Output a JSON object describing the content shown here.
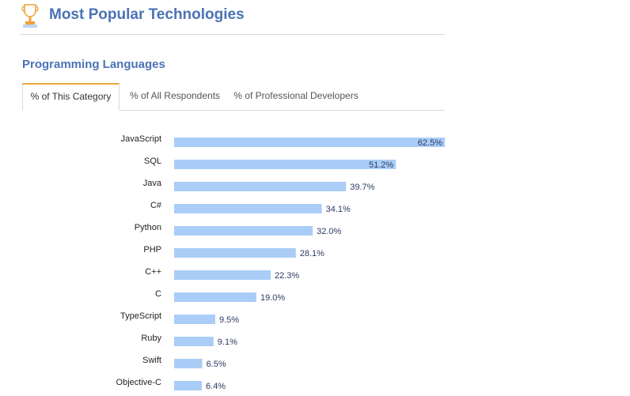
{
  "header": {
    "title": "Most Popular Technologies",
    "icon": "trophy-icon"
  },
  "section": {
    "title": "Programming Languages"
  },
  "tabs": [
    {
      "label": "% of This Category",
      "active": true
    },
    {
      "label": "% of All Respondents",
      "active": false
    },
    {
      "label": "% of Professional Developers",
      "active": false
    }
  ],
  "colors": {
    "bar": "#a9cdf7",
    "title": "#4a73b5",
    "tab_accent": "#f0a33b",
    "value_label": "#2d3a63"
  },
  "chart_data": {
    "type": "bar",
    "orientation": "horizontal",
    "categories": [
      "JavaScript",
      "SQL",
      "Java",
      "C#",
      "Python",
      "PHP",
      "C++",
      "C",
      "TypeScript",
      "Ruby",
      "Swift",
      "Objective-C"
    ],
    "values": [
      62.5,
      51.2,
      39.7,
      34.1,
      32.0,
      28.1,
      22.3,
      19.0,
      9.5,
      9.1,
      6.5,
      6.4
    ],
    "value_labels": [
      "62.5%",
      "51.2%",
      "39.7%",
      "34.1%",
      "32.0%",
      "28.1%",
      "22.3%",
      "19.0%",
      "9.5%",
      "9.1%",
      "6.5%",
      "6.4%"
    ],
    "xlim": [
      0,
      62.5
    ],
    "title": "",
    "xlabel": "",
    "ylabel": "",
    "grid": false
  }
}
